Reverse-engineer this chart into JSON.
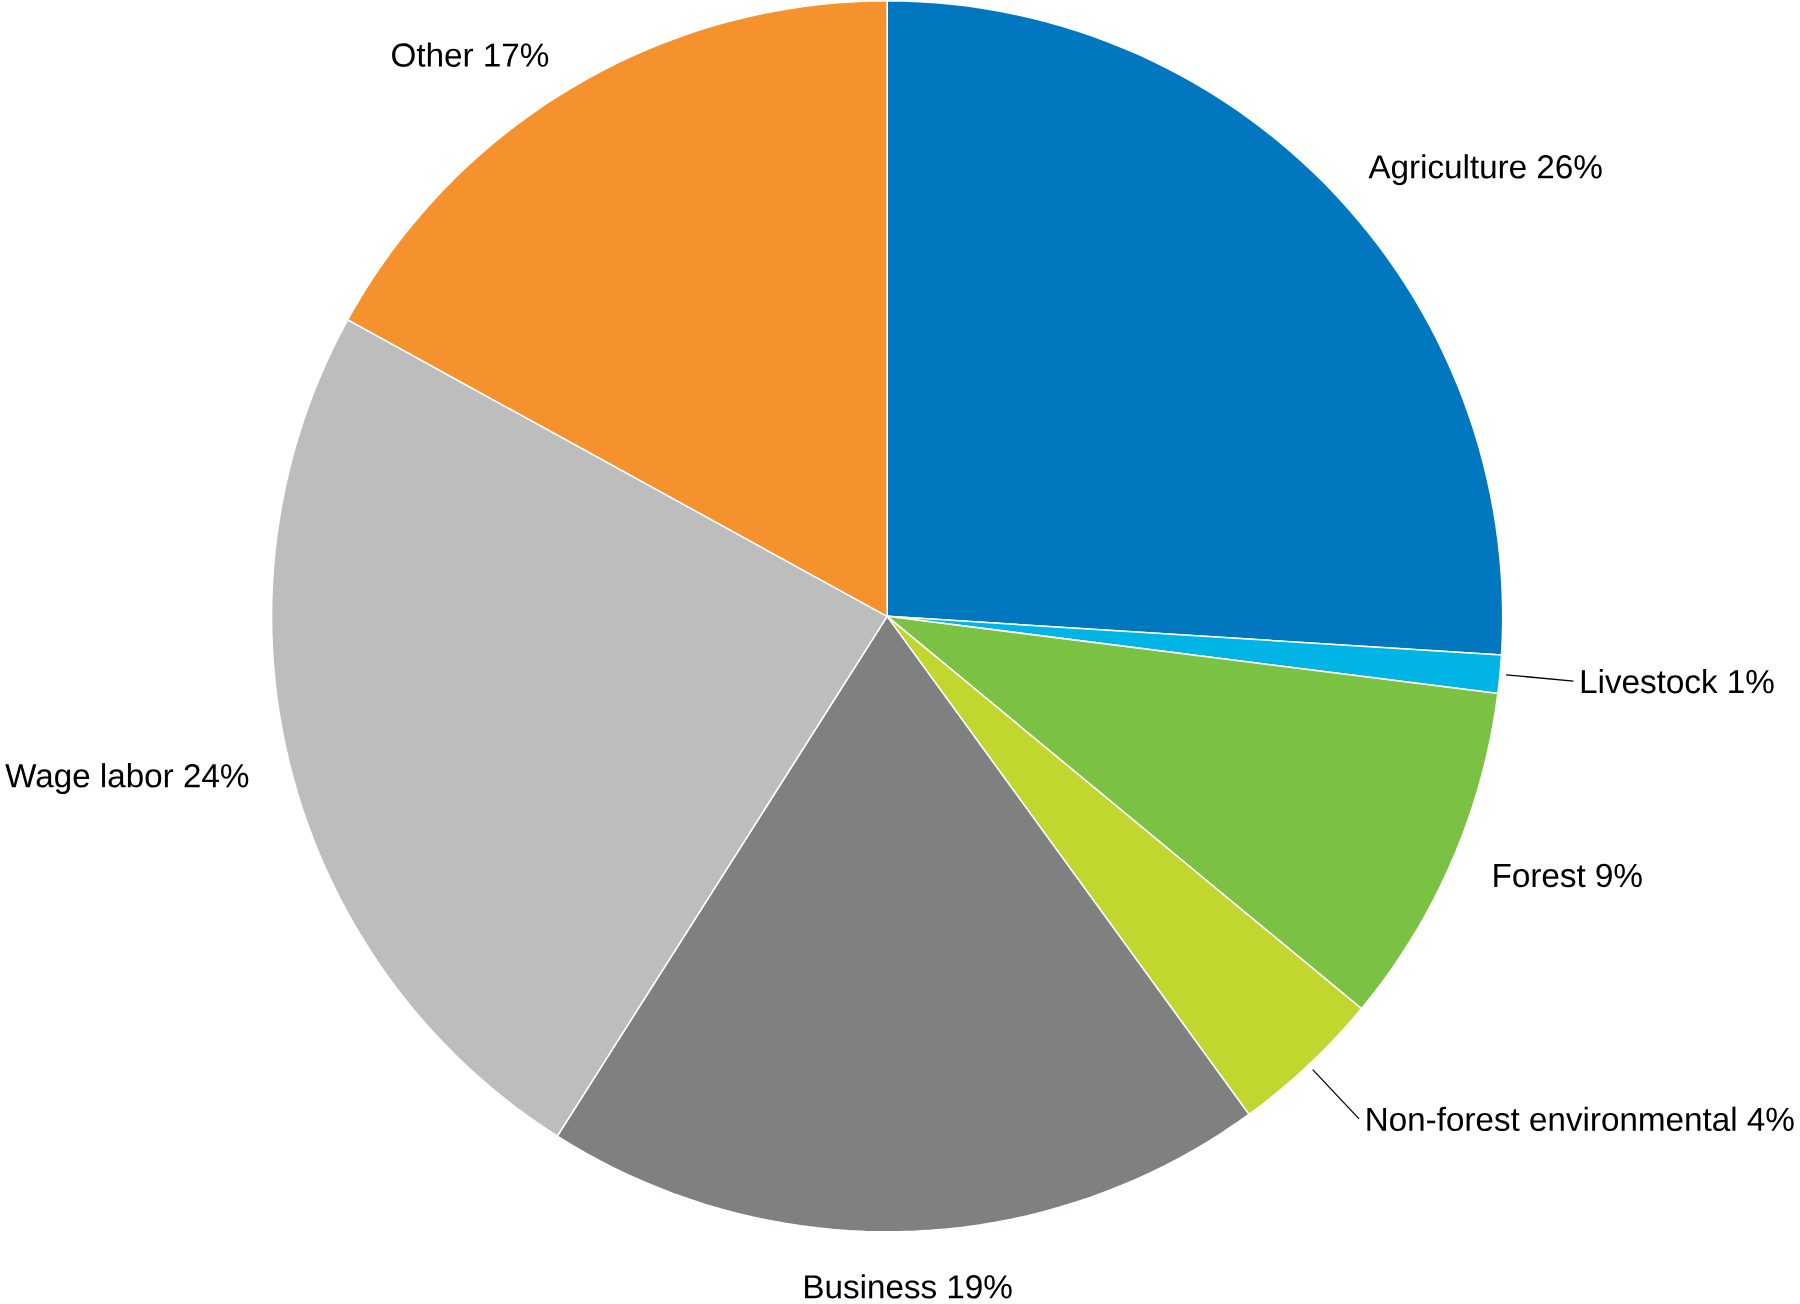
{
  "chart_data": {
    "type": "pie",
    "categories": [
      "Agriculture 26%",
      "Livestock 1%",
      "Forest 9%",
      "Non-forest environmental 4%",
      "Business 19%",
      "Wage labor 24%",
      "Other 17%"
    ],
    "values": [
      26,
      1,
      9,
      4,
      19,
      24,
      17
    ],
    "colors": [
      "#0077bf",
      "#00b5e6",
      "#7bc143",
      "#c1d72f",
      "#7f8181",
      "#bcbdbc",
      "#f6922d"
    ]
  }
}
